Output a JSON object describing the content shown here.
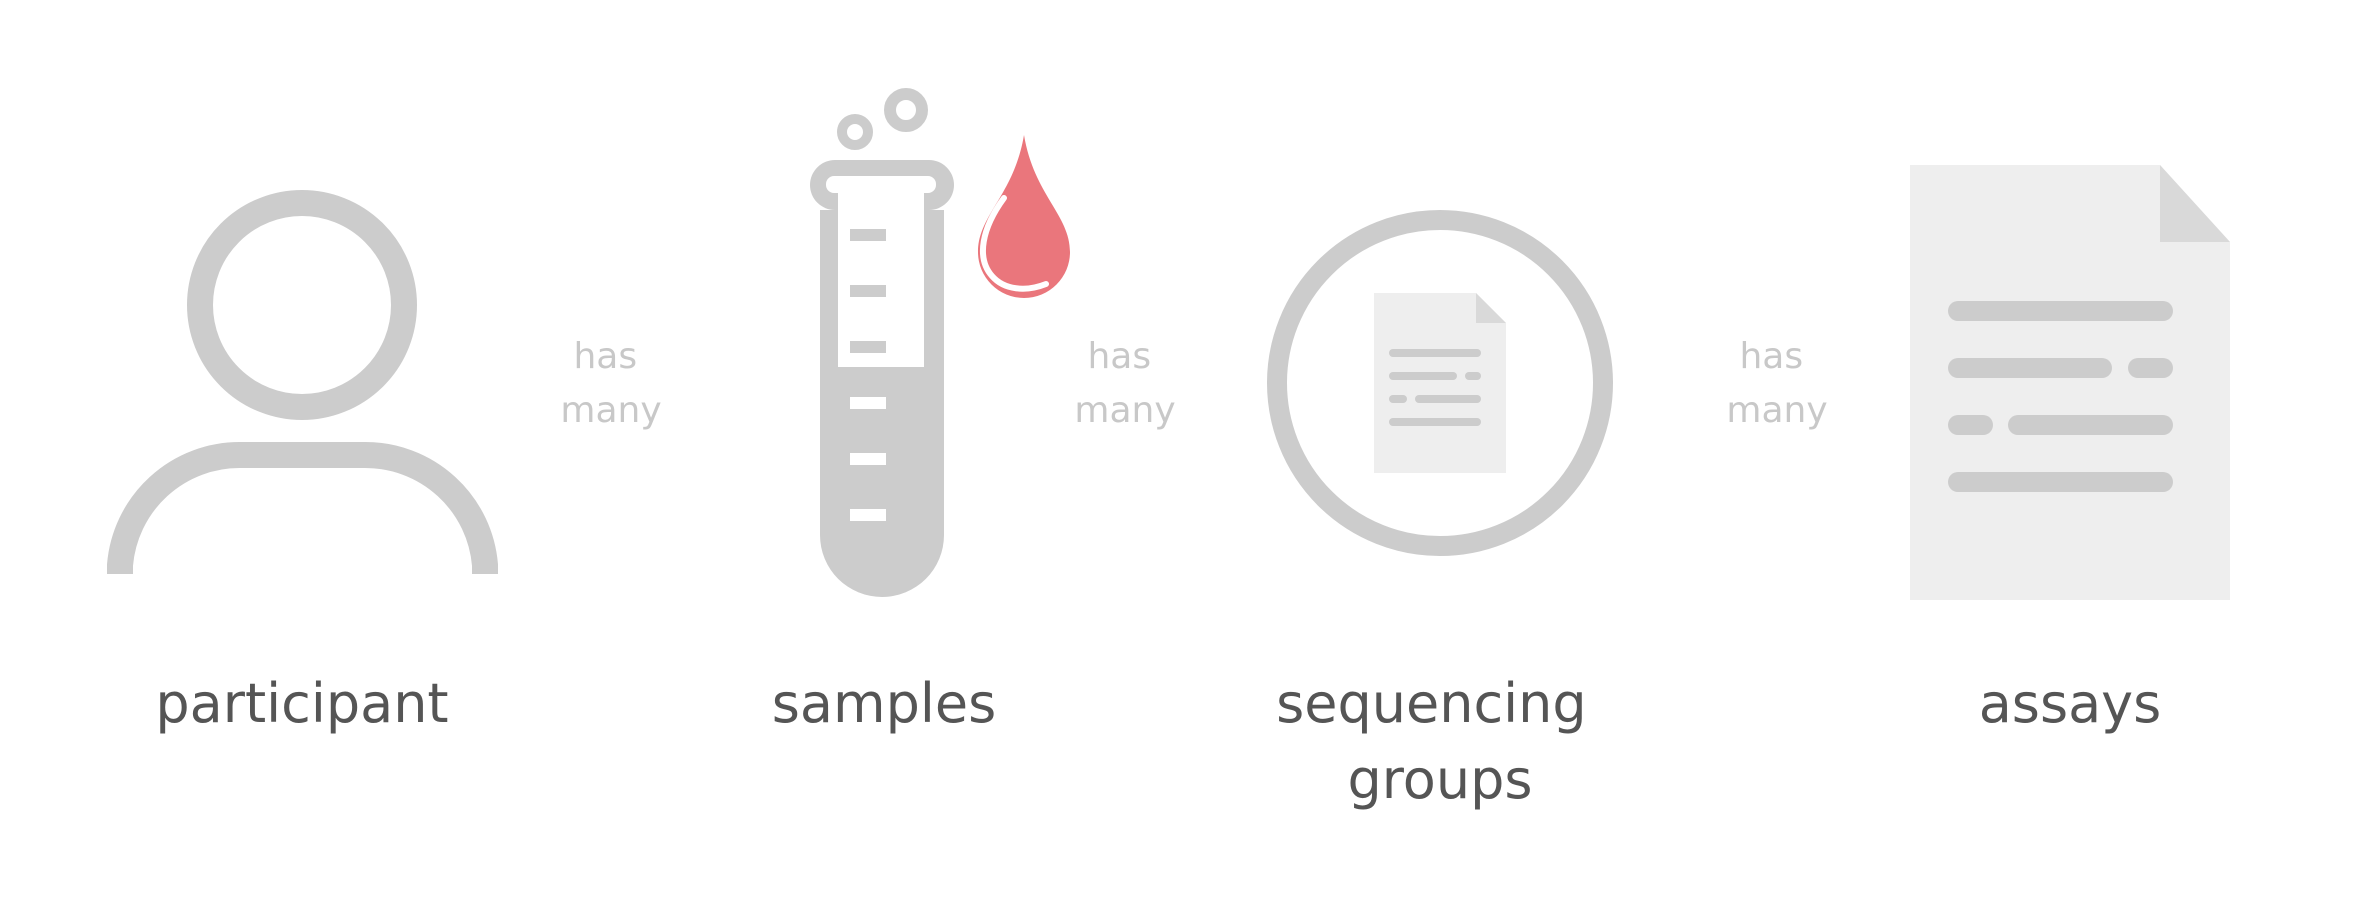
{
  "entities": [
    {
      "id": "participant",
      "label_lines": [
        "participant"
      ]
    },
    {
      "id": "samples",
      "label_lines": [
        "samples"
      ]
    },
    {
      "id": "sequencing-groups",
      "label_lines": [
        "sequencing",
        "groups"
      ]
    },
    {
      "id": "assays",
      "label_lines": [
        "assays"
      ]
    }
  ],
  "relations": [
    {
      "from": "participant",
      "to": "samples",
      "label_lines": [
        "has",
        "many"
      ]
    },
    {
      "from": "samples",
      "to": "sequencing-groups",
      "label_lines": [
        "has",
        "many"
      ]
    },
    {
      "from": "sequencing-groups",
      "to": "assays",
      "label_lines": [
        "has",
        "many"
      ]
    }
  ],
  "icons": {
    "participant": "person-icon",
    "samples": "test-tube-icon",
    "samples_accent": "blood-drop-icon",
    "sequencing-groups": "document-in-circle-icon",
    "assays": "document-icon"
  },
  "colors": {
    "icon_gray": "#cccccc",
    "paper_gray": "#eeeeee",
    "fold_gray": "#d9d9d9",
    "line_gray": "#cccccc",
    "label_text": "#555555",
    "relation_text": "#c8c8c8",
    "blood_red": "#ea767c"
  }
}
